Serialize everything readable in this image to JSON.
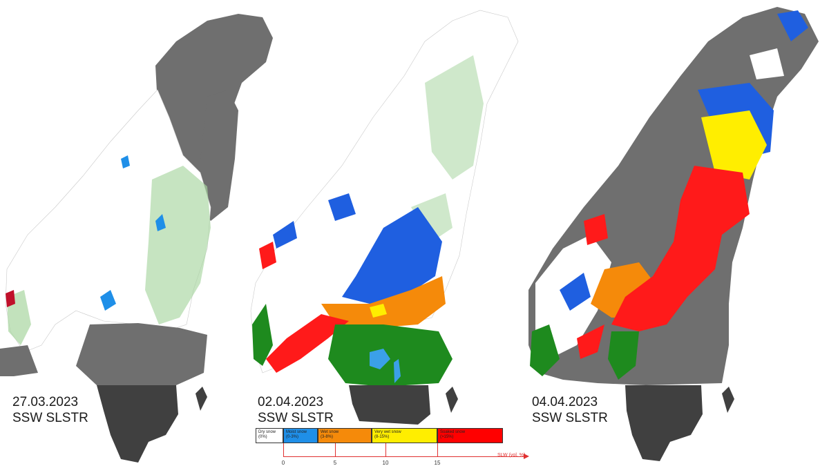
{
  "panels": [
    {
      "date": "27.03.2023",
      "product": "SSW SLSTR"
    },
    {
      "date": "02.04.2023",
      "product": "SSW SLSTR"
    },
    {
      "date": "04.04.2023",
      "product": "SSW SLSTR"
    }
  ],
  "legend": {
    "classes": [
      {
        "label": "Dry snow",
        "range": "(0%)",
        "color": "#ffffff"
      },
      {
        "label": "Moist snow",
        "range": "(0-3%)",
        "color": "#1f8fe8"
      },
      {
        "label": "Wet snow",
        "range": "(3-8%)",
        "color": "#f58a0a"
      },
      {
        "label": "Very wet snow",
        "range": "(8-15%)",
        "color": "#ffee00"
      },
      {
        "label": "Soaked snow",
        "range": "(>15%)",
        "color": "#ff0000"
      }
    ],
    "ticks": [
      "0",
      "5",
      "10",
      "15"
    ],
    "axis_title": "SLW (vol. %)"
  },
  "colors": {
    "land_no_snow": "#6f6f6f",
    "land_dark": "#404040",
    "forest_light": "#a8d5a0",
    "forest_dark": "#1e8a1e",
    "water": "#3ba0e8",
    "wetness_moist": "#1f5fe0",
    "wetness_wet": "#f58a0a",
    "wetness_very_wet": "#ffee00",
    "wetness_soaked": "#ff1a1a"
  }
}
